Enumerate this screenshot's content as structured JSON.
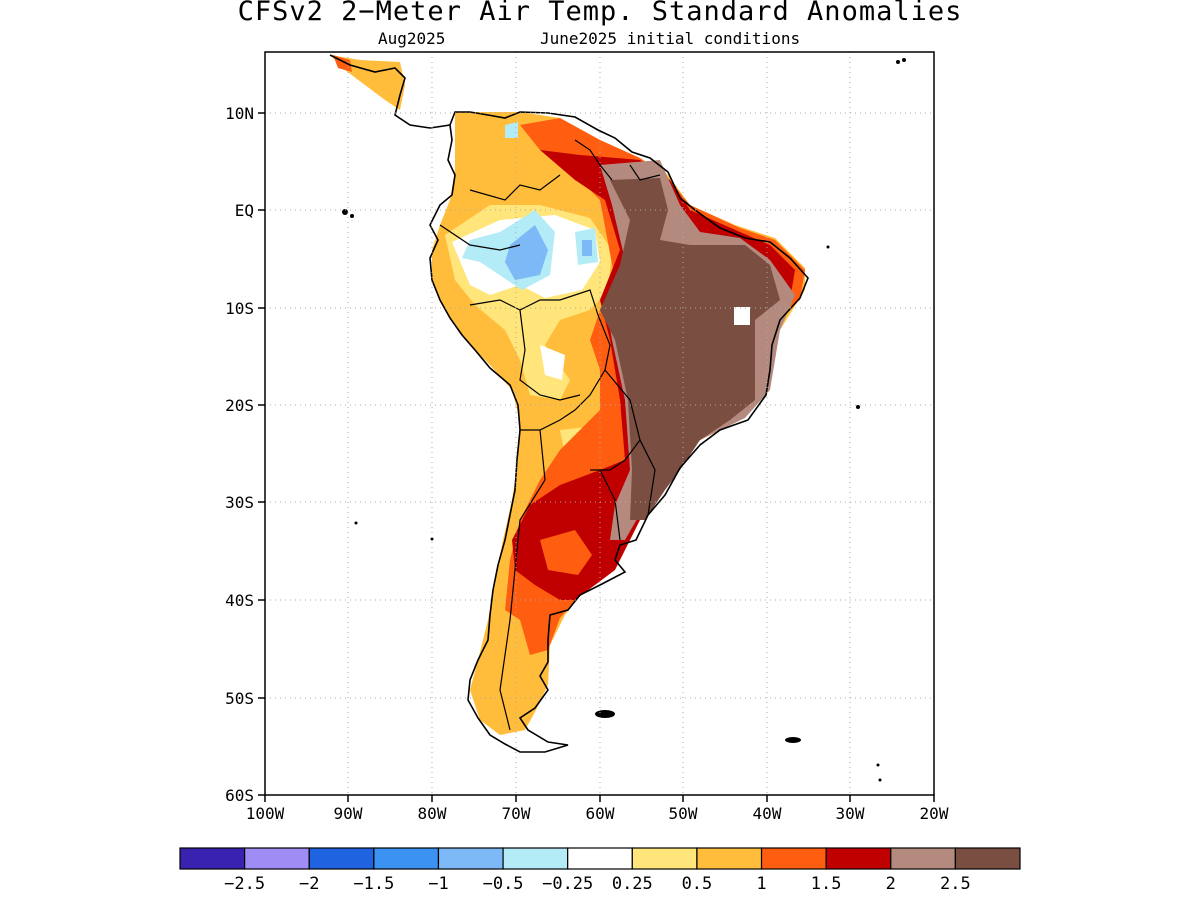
{
  "title": "CFSv2 2−Meter Air Temp. Standard Anomalies",
  "subtitle_left": "Aug2025",
  "subtitle_right": "June2025 initial conditions",
  "map": {
    "lat_labels": [
      "10N",
      "EQ",
      "10S",
      "20S",
      "30S",
      "40S",
      "50S",
      "60S"
    ],
    "lon_labels": [
      "100W",
      "90W",
      "80W",
      "70W",
      "60W",
      "50W",
      "40W",
      "30W",
      "20W"
    ],
    "lat_range": [
      -60,
      15.5
    ],
    "lon_range": [
      -100,
      -20
    ],
    "grid": "dotted"
  },
  "colorbar": {
    "colors": [
      "#3a22b0",
      "#9f8cf5",
      "#1f63e0",
      "#3b92f0",
      "#7db8f7",
      "#b3ecf7",
      "#ffffff",
      "#ffe57a",
      "#ffbd3b",
      "#ff5e11",
      "#c00000",
      "#b48a7e",
      "#7a4e40"
    ],
    "labels": [
      "−2.5",
      "−2",
      "−1.5",
      "−1",
      "−0.5",
      "−0.25",
      "0.25",
      "0.5",
      "1",
      "1.5",
      "2",
      "2.5"
    ]
  }
}
